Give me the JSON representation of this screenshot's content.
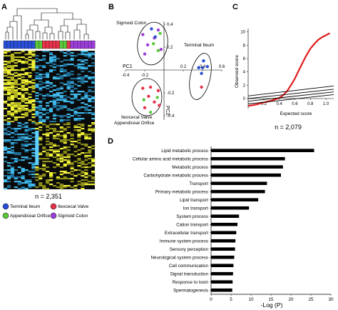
{
  "panels": {
    "a": {
      "label": "A",
      "n_text": "n = 2,351",
      "legend": [
        {
          "label": "Terminal Ileum",
          "color": "#2b4fd6"
        },
        {
          "label": "Ileocecal Valve",
          "color": "#e5334a"
        },
        {
          "label": "Appendiceal Orifice",
          "color": "#5ac83a"
        },
        {
          "label": "Sigmoid Colon",
          "color": "#9b3fd8"
        }
      ],
      "sample_bar": [
        "#2b4fd6",
        "#2b4fd6",
        "#2b4fd6",
        "#2b4fd6",
        "#2b4fd6",
        "#2b4fd6",
        "#2b4fd6",
        "#2b4fd6",
        "#2b4fd6",
        "#5ac83a",
        "#5ac83a",
        "#e5334a",
        "#e5334a",
        "#e5334a",
        "#e5334a",
        "#e5334a",
        "#5ac83a",
        "#5ac83a",
        "#e5334a",
        "#9b3fd8",
        "#9b3fd8",
        "#9b3fd8",
        "#9b3fd8",
        "#9b3fd8",
        "#9b3fd8",
        "#9b3fd8"
      ]
    },
    "b": {
      "label": "B",
      "group_labels": {
        "sigmoid": "Sigmoid Colon",
        "terminal": "Terminal Ileum",
        "ileocecal_line1": "Ileocecal Valve",
        "ileocecal_line2": "Appendiceal Orifice"
      },
      "pc1_label": "PC1",
      "pc2_label": "PC2",
      "ticks_x": [
        "-0.4",
        "-0.2",
        "0.2",
        "0.4",
        "0.6"
      ],
      "ticks_y": [
        "0.4",
        "0.2",
        "-0.2",
        "-0.4"
      ]
    },
    "c": {
      "label": "C",
      "ylabel": "Observed score",
      "xlabel": "Expected score",
      "n_text": "n = 2,079",
      "ticks_x": [
        "0.2",
        "0.4",
        "0.6",
        "0.8",
        "1.0"
      ],
      "ticks_y": [
        "0",
        "2",
        "4",
        "6",
        "8",
        "10"
      ]
    },
    "d": {
      "label": "D",
      "xlabel": "-Log (P)"
    }
  },
  "chart_data": [
    {
      "type": "scatter",
      "title": "",
      "xlabel": "PC1",
      "ylabel": "PC2",
      "xlim": [
        -0.4,
        0.6
      ],
      "ylim": [
        -0.45,
        0.45
      ],
      "series": [
        {
          "name": "Sigmoid Colon",
          "color": "#9b3fd8",
          "x": [
            -0.22,
            -0.17,
            -0.06,
            -0.1,
            -0.03,
            -0.2
          ],
          "y": [
            0.31,
            0.22,
            0.35,
            0.28,
            0.18,
            0.14
          ]
        },
        {
          "name": "Terminal Ileum",
          "color": "#2b4fd6",
          "x": [
            0.36,
            0.4,
            0.45,
            0.41,
            0.39,
            -0.13,
            -0.09
          ],
          "y": [
            0.02,
            0.02,
            0.03,
            0.08,
            -0.03,
            0.36,
            0.29
          ]
        },
        {
          "name": "Ileocecal Valve",
          "color": "#e5334a",
          "x": [
            -0.22,
            -0.14,
            -0.06,
            -0.16,
            -0.1,
            -0.2,
            -0.05,
            0.39
          ],
          "y": [
            -0.16,
            -0.15,
            -0.18,
            -0.23,
            -0.28,
            -0.33,
            -0.31,
            -0.15
          ]
        },
        {
          "name": "Appendiceal Orifice",
          "color": "#5ac83a",
          "x": [
            -0.11,
            -0.04,
            -0.21,
            -0.07,
            -0.14,
            -0.06
          ],
          "y": [
            0.23,
            0.32,
            -0.26,
            -0.24,
            -0.37,
            0.17
          ]
        }
      ]
    },
    {
      "type": "line",
      "title": "",
      "xlabel": "Expected score",
      "ylabel": "Observed score",
      "xlim": [
        0,
        1.1
      ],
      "ylim": [
        -1.5,
        10.5
      ],
      "series": [
        {
          "name": "observed",
          "color": "#e01a1a",
          "x": [
            0.0,
            0.1,
            0.2,
            0.3,
            0.35,
            0.4,
            0.45,
            0.5,
            0.55,
            0.6,
            0.65,
            0.7,
            0.75,
            0.8,
            0.85,
            0.9,
            0.95,
            1.0,
            1.05
          ],
          "y": [
            -1.1,
            -0.9,
            -0.6,
            -0.3,
            -0.1,
            0.1,
            0.5,
            1.1,
            2.0,
            3.0,
            4.2,
            5.4,
            6.5,
            7.5,
            8.2,
            8.8,
            9.2,
            9.5,
            9.8
          ]
        },
        {
          "name": "null-1",
          "color": "#000000",
          "x": [
            0.0,
            1.1
          ],
          "y": [
            0.4,
            1.9
          ]
        },
        {
          "name": "null-2",
          "color": "#000000",
          "x": [
            0.0,
            1.1
          ],
          "y": [
            0.0,
            1.4
          ]
        },
        {
          "name": "null-3",
          "color": "#000000",
          "x": [
            0.0,
            1.1
          ],
          "y": [
            -0.4,
            1.0
          ]
        },
        {
          "name": "null-4",
          "color": "#000000",
          "x": [
            0.0,
            1.1
          ],
          "y": [
            -0.8,
            0.6
          ]
        }
      ]
    },
    {
      "type": "bar",
      "title": "",
      "xlabel": "-Log (P)",
      "ylabel": "",
      "xlim": [
        0,
        30
      ],
      "ticks": [
        "0",
        "5",
        "10",
        "15",
        "20",
        "25",
        "30"
      ],
      "categories": [
        "Lipid metabolic process",
        "Cellular amino acid metabolic process",
        "Metabolic process",
        "Carbohydrate metabolic process",
        "Transport",
        "Primary metabolic process",
        "Lipid transport",
        "Ion transport",
        "System process",
        "Cation transport",
        "Extracellular transport",
        "Immune system process",
        "Sensory perception",
        "Neurological system process",
        "Cell communication",
        "Signal transduction",
        "Response to toxin",
        "Spermatogenesis"
      ],
      "values": [
        25.8,
        18.5,
        18.0,
        17.5,
        14.0,
        13.5,
        11.8,
        9.5,
        7.0,
        6.6,
        6.3,
        6.1,
        6.0,
        5.8,
        5.6,
        5.5,
        5.4,
        5.3
      ]
    }
  ]
}
